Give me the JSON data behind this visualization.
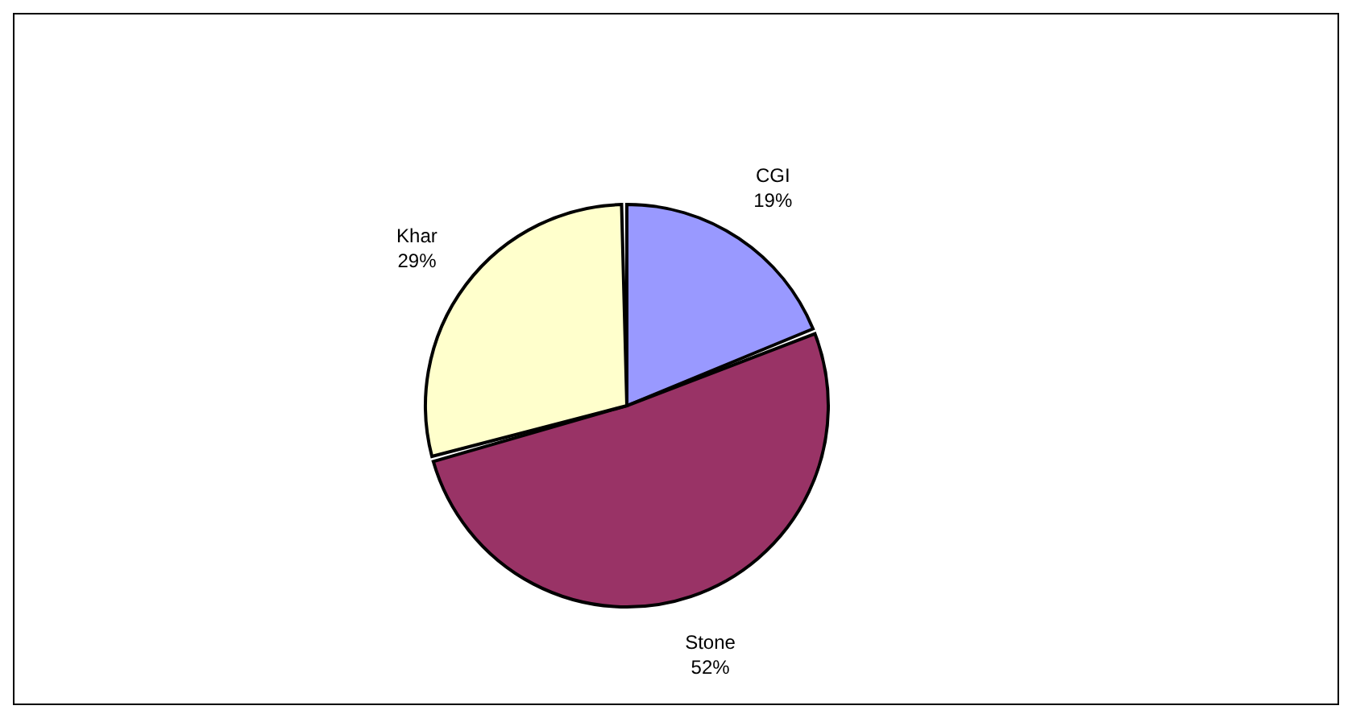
{
  "chart_data": {
    "type": "pie",
    "categories": [
      "CGI",
      "Stone",
      "Khar"
    ],
    "values": [
      19,
      52,
      29
    ],
    "colors": [
      "#9999ff",
      "#993366",
      "#ffffcc"
    ],
    "value_labels": [
      "19%",
      "52%",
      "29%"
    ]
  }
}
